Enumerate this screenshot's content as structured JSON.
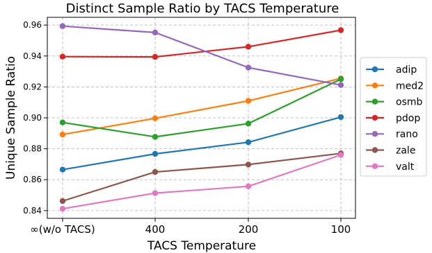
{
  "chart_data": {
    "type": "line",
    "title": "Distinct Sample Ratio by TACS Temperature",
    "xlabel": "TACS Temperature",
    "ylabel": "Unique Sample Ratio",
    "categories": [
      "∞(w/o TACS)",
      "400",
      "200",
      "100"
    ],
    "ylim": [
      0.835,
      0.965
    ],
    "yticks": [
      0.84,
      0.86,
      0.88,
      0.9,
      0.92,
      0.94,
      0.96
    ],
    "ytick_labels": [
      "0.84",
      "0.86",
      "0.88",
      "0.90",
      "0.92",
      "0.94",
      "0.96"
    ],
    "grid": true,
    "legend_position": "right, outside plot",
    "series": [
      {
        "name": "adip",
        "color": "#1f77b4",
        "values": [
          0.8665,
          0.8767,
          0.8842,
          0.9005
        ]
      },
      {
        "name": "med2",
        "color": "#ff7f0e",
        "values": [
          0.8892,
          0.8997,
          0.911,
          0.9255
        ]
      },
      {
        "name": "osmb",
        "color": "#2ca02c",
        "values": [
          0.897,
          0.8877,
          0.8963,
          0.925
        ]
      },
      {
        "name": "pdop",
        "color": "#d62728",
        "values": [
          0.9396,
          0.9394,
          0.946,
          0.9567
        ]
      },
      {
        "name": "rano",
        "color": "#9467bd",
        "values": [
          0.9593,
          0.9552,
          0.9325,
          0.9212
        ]
      },
      {
        "name": "zale",
        "color": "#8c564b",
        "values": [
          0.8462,
          0.865,
          0.8698,
          0.877
        ]
      },
      {
        "name": "valt",
        "color": "#e377c2",
        "values": [
          0.8412,
          0.8513,
          0.8557,
          0.876
        ]
      }
    ]
  }
}
